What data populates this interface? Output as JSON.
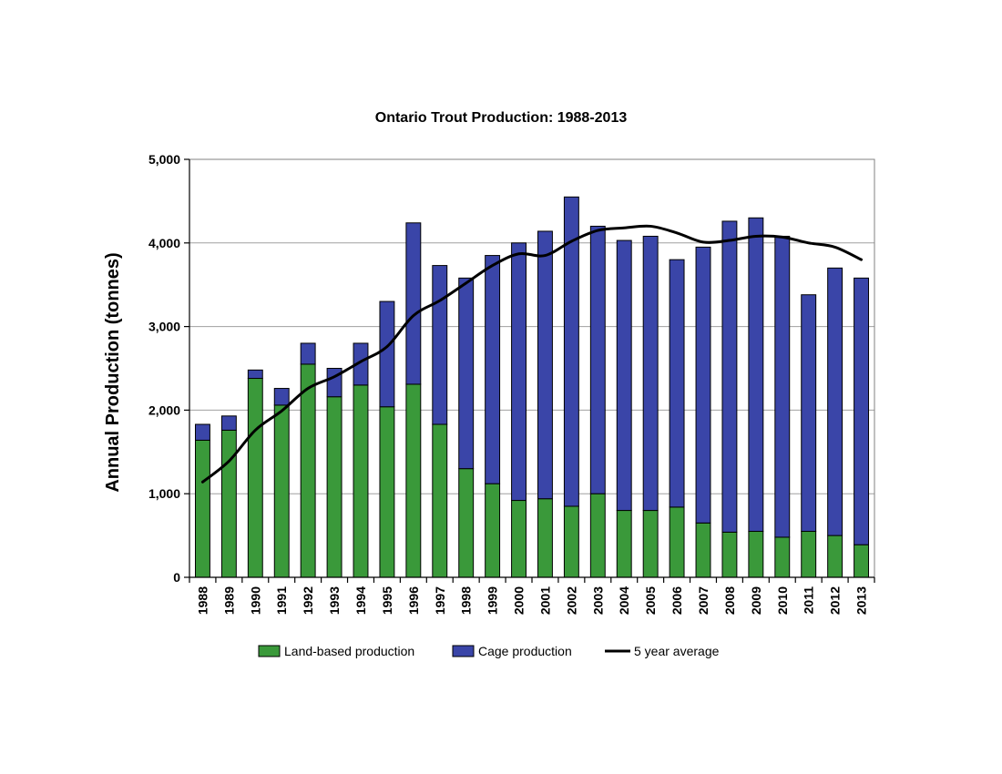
{
  "chart_data": {
    "type": "bar",
    "stacked": true,
    "title": "Ontario Trout Production: 1988-2013",
    "xlabel": "",
    "ylabel": "Annual Production (tonnes)",
    "ylim": [
      0,
      5000
    ],
    "yticks": [
      0,
      1000,
      2000,
      3000,
      4000,
      5000
    ],
    "ytick_labels": [
      "0",
      "1,000",
      "2,000",
      "3,000",
      "4,000",
      "5,000"
    ],
    "grid": true,
    "legend_position": "bottom",
    "categories": [
      "1988",
      "1989",
      "1990",
      "1991",
      "1992",
      "1993",
      "1994",
      "1995",
      "1996",
      "1997",
      "1998",
      "1999",
      "2000",
      "2001",
      "2002",
      "2003",
      "2004",
      "2005",
      "2006",
      "2007",
      "2008",
      "2009",
      "2010",
      "2011",
      "2012",
      "2013"
    ],
    "series": [
      {
        "name": "Land-based production",
        "kind": "bar",
        "color": "#3a993a",
        "values": [
          1640,
          1760,
          2380,
          2060,
          2550,
          2160,
          2300,
          2040,
          2310,
          1830,
          1300,
          1120,
          920,
          940,
          850,
          1000,
          800,
          800,
          840,
          650,
          540,
          550,
          480,
          550,
          500,
          390
        ]
      },
      {
        "name": "Cage production",
        "kind": "bar",
        "color": "#3a45a8",
        "values": [
          190,
          170,
          100,
          200,
          250,
          340,
          500,
          1260,
          1930,
          1900,
          2280,
          2730,
          3080,
          3200,
          3700,
          3200,
          3230,
          3280,
          2960,
          3300,
          3720,
          3750,
          3600,
          2830,
          3200,
          3190
        ]
      },
      {
        "name": "5 year average",
        "kind": "line",
        "color": "#000000",
        "values": [
          1140,
          1390,
          1760,
          1990,
          2260,
          2400,
          2580,
          2760,
          3130,
          3310,
          3520,
          3730,
          3870,
          3850,
          4020,
          4150,
          4180,
          4200,
          4120,
          4010,
          4030,
          4080,
          4070,
          4000,
          3950,
          3800
        ]
      }
    ]
  }
}
